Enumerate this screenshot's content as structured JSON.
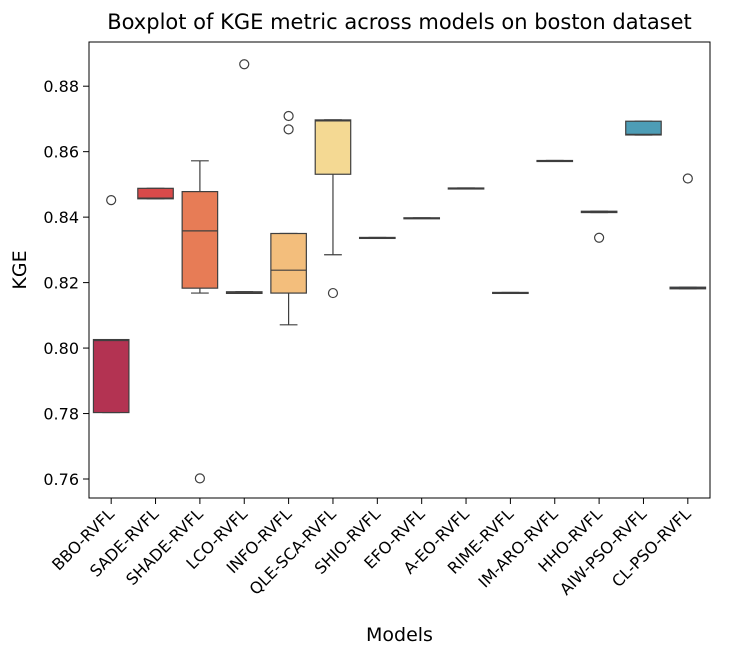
{
  "chart_data": {
    "type": "box",
    "title": "Boxplot of KGE metric across models on boston dataset",
    "xlabel": "Models",
    "ylabel": "KGE",
    "ylim": [
      0.7542,
      0.8935
    ],
    "yticks": [
      "0.76",
      "0.78",
      "0.80",
      "0.82",
      "0.84",
      "0.86",
      "0.88"
    ],
    "ytick_values": [
      0.76,
      0.78,
      0.8,
      0.82,
      0.84,
      0.86,
      0.88
    ],
    "grid": false,
    "categories": [
      "BBO-RVFL",
      "SADE-RVFL",
      "SHADE-RVFL",
      "LCO-RVFL",
      "INFO-RVFL",
      "QLE-SCA-RVFL",
      "SHIO-RVFL",
      "EFO-RVFL",
      "A-EO-RVFL",
      "RIME-RVFL",
      "IM-ARO-RVFL",
      "HHO-RVFL",
      "AIW-PSO-RVFL",
      "CL-PSO-RVFL"
    ],
    "boxes": [
      {
        "q1": 0.7803,
        "median": 0.8023,
        "q3": 0.8026,
        "whislo": 0.7803,
        "whishi": 0.8026,
        "fliers": [
          0.8452
        ],
        "color": "#b33352"
      },
      {
        "q1": 0.8456,
        "median": 0.8458,
        "q3": 0.8488,
        "whislo": 0.8456,
        "whishi": 0.8488,
        "fliers": [],
        "color": "#d94a4a"
      },
      {
        "q1": 0.8183,
        "median": 0.8358,
        "q3": 0.8478,
        "whislo": 0.8168,
        "whishi": 0.8572,
        "fliers": [
          0.7602
        ],
        "color": "#e77c56"
      },
      {
        "q1": 0.8167,
        "median": 0.8169,
        "q3": 0.8172,
        "whislo": 0.8167,
        "whishi": 0.8172,
        "fliers": [
          0.8867
        ],
        "color": "#f2a065"
      },
      {
        "q1": 0.8168,
        "median": 0.8238,
        "q3": 0.835,
        "whislo": 0.8071,
        "whishi": 0.835,
        "fliers": [
          0.8709,
          0.8668
        ],
        "color": "#f3be7c"
      },
      {
        "q1": 0.8531,
        "median": 0.8694,
        "q3": 0.8697,
        "whislo": 0.8285,
        "whishi": 0.8697,
        "fliers": [
          0.8168
        ],
        "color": "#f4d993"
      },
      {
        "q1": 0.8336,
        "median": 0.8337,
        "q3": 0.8338,
        "whislo": 0.8336,
        "whishi": 0.8338,
        "fliers": [],
        "color": "#f8e8a6"
      },
      {
        "q1": 0.8396,
        "median": 0.8397,
        "q3": 0.8398,
        "whislo": 0.8396,
        "whishi": 0.8398,
        "fliers": [],
        "color": "#f4f1b0"
      },
      {
        "q1": 0.8487,
        "median": 0.8488,
        "q3": 0.8489,
        "whislo": 0.8487,
        "whishi": 0.8489,
        "fliers": [],
        "color": "#e6f1a8"
      },
      {
        "q1": 0.8168,
        "median": 0.8169,
        "q3": 0.817,
        "whislo": 0.8168,
        "whishi": 0.817,
        "fliers": [],
        "color": "#cbe6a0"
      },
      {
        "q1": 0.8571,
        "median": 0.8572,
        "q3": 0.8573,
        "whislo": 0.8571,
        "whishi": 0.8573,
        "fliers": [],
        "color": "#a8d7a3"
      },
      {
        "q1": 0.8414,
        "median": 0.8416,
        "q3": 0.8418,
        "whislo": 0.8414,
        "whishi": 0.8418,
        "fliers": [
          0.8337
        ],
        "color": "#7ec3a6"
      },
      {
        "q1": 0.8651,
        "median": 0.8653,
        "q3": 0.8693,
        "whislo": 0.8651,
        "whishi": 0.8693,
        "fliers": [],
        "color": "#4d9db6"
      },
      {
        "q1": 0.8181,
        "median": 0.8183,
        "q3": 0.8186,
        "whislo": 0.8181,
        "whishi": 0.8186,
        "fliers": [
          0.8518
        ],
        "color": "#5e79b5"
      }
    ]
  }
}
